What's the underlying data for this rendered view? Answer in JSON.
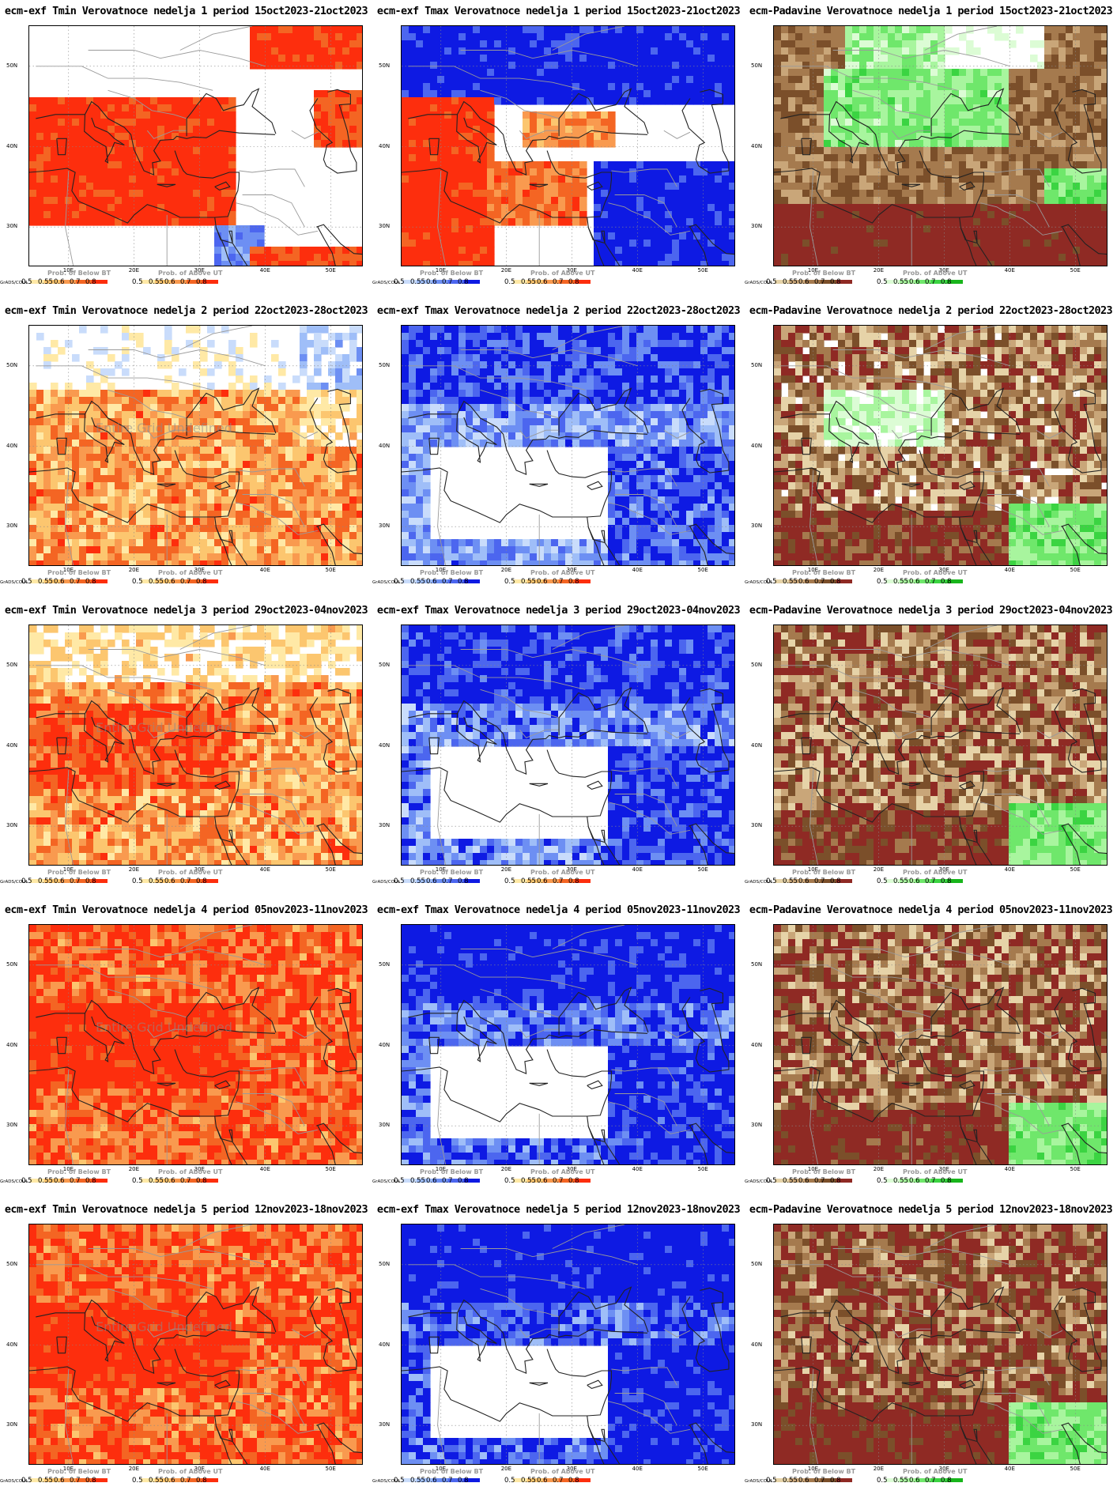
{
  "colors": {
    "tmin": [
      "#ffe9a6",
      "#fcc66f",
      "#f99a4f",
      "#f46523",
      "#fd2e0d"
    ],
    "tmax": [
      "#c9dcfb",
      "#9fbef8",
      "#6d8ff3",
      "#4c66ef",
      "#0e1ae3"
    ],
    "dry": [
      "#e6d3a8",
      "#c9a679",
      "#a57a4e",
      "#7b4f2a",
      "#8f2a24"
    ],
    "wet": [
      "#dcfcd5",
      "#a8f59e",
      "#6fe76b",
      "#3bd442",
      "#18b51b"
    ],
    "neutral": "#ffffff"
  },
  "common": {
    "lat_labels": [
      "50N",
      "40N",
      "30N"
    ],
    "lon_labels": [
      "10E",
      "20E",
      "30E",
      "40E",
      "50E"
    ],
    "grads": "GrADS/COLA",
    "tick_first": "0.5",
    "ticks": [
      "0.55",
      "0.6",
      "0.7",
      "0.8"
    ],
    "below_label": "Prob. of Below BT",
    "above_label": "Prob. of Above UT",
    "undefined_label": "Entire Grid Undefined"
  },
  "panels": [
    {
      "title": "ecm-exf Tmin Verovatnoce nedelja 1 period 15oct2023-21oct2023",
      "var": "tmin",
      "week": 1,
      "undef": false
    },
    {
      "title": "ecm-exf Tmax Verovatnoce nedelja 1 period 15oct2023-21oct2023",
      "var": "tmax",
      "week": 1,
      "undef": false
    },
    {
      "title": "ecm-Padavine Verovatnoce nedelja 1 period 15oct2023-21oct2023",
      "var": "prec",
      "week": 1,
      "undef": false
    },
    {
      "title": "ecm-exf Tmin Verovatnoce nedelja 2 period 22oct2023-28oct2023",
      "var": "tmin",
      "week": 2,
      "undef": true
    },
    {
      "title": "ecm-exf Tmax Verovatnoce nedelja 2 period 22oct2023-28oct2023",
      "var": "tmax",
      "week": 2,
      "undef": false
    },
    {
      "title": "ecm-Padavine Verovatnoce nedelja 2 period 22oct2023-28oct2023",
      "var": "prec",
      "week": 2,
      "undef": false
    },
    {
      "title": "ecm-exf Tmin Verovatnoce nedelja 3 period 29oct2023-04nov2023",
      "var": "tmin",
      "week": 3,
      "undef": true
    },
    {
      "title": "ecm-exf Tmax Verovatnoce nedelja 3 period 29oct2023-04nov2023",
      "var": "tmax",
      "week": 3,
      "undef": false
    },
    {
      "title": "ecm-Padavine Verovatnoce nedelja 3 period 29oct2023-04nov2023",
      "var": "prec",
      "week": 3,
      "undef": false
    },
    {
      "title": "ecm-exf Tmin Verovatnoce nedelja 4 period 05nov2023-11nov2023",
      "var": "tmin",
      "week": 4,
      "undef": true
    },
    {
      "title": "ecm-exf Tmax Verovatnoce nedelja 4 period 05nov2023-11nov2023",
      "var": "tmax",
      "week": 4,
      "undef": false
    },
    {
      "title": "ecm-Padavine Verovatnoce nedelja 4 period 05nov2023-11nov2023",
      "var": "prec",
      "week": 4,
      "undef": false
    },
    {
      "title": "ecm-exf Tmin Verovatnoce nedelja 5 period 12nov2023-18nov2023",
      "var": "tmin",
      "week": 5,
      "undef": true
    },
    {
      "title": "ecm-exf Tmax Verovatnoce nedelja 5 period 12nov2023-18nov2023",
      "var": "tmax",
      "week": 5,
      "undef": false
    },
    {
      "title": "ecm-Padavine Verovatnoce nedelja 5 period 12nov2023-18nov2023",
      "var": "prec",
      "week": 5,
      "undef": false
    }
  ]
}
